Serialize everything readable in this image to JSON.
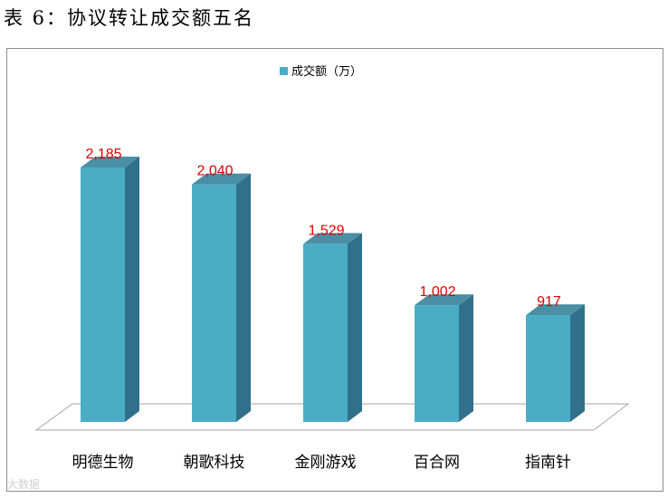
{
  "page_title": "表 6：协议转让成交额五名",
  "watermark": "大数据",
  "chart_data": {
    "type": "bar",
    "title": "",
    "categories": [
      "明德生物",
      "朝歌科技",
      "金刚游戏",
      "百合网",
      "指南针"
    ],
    "series": [
      {
        "name": "成交额（万）",
        "values": [
          2185,
          2040,
          1529,
          1002,
          917
        ]
      }
    ],
    "data_labels": [
      "2,185",
      "2,040",
      "1,529",
      "1,002",
      "917"
    ],
    "ylim": [
      0,
      2500
    ],
    "xlabel": "",
    "ylabel": "",
    "grid": false,
    "legend_position": "top",
    "style": "3d-column",
    "colors": {
      "bar_front": "#4bacc6",
      "bar_top": "#4a8fa3",
      "bar_side": "#31708a",
      "data_label": "#e00000",
      "floor": "#ffffff",
      "floor_stroke": "#a6a6a6"
    }
  }
}
